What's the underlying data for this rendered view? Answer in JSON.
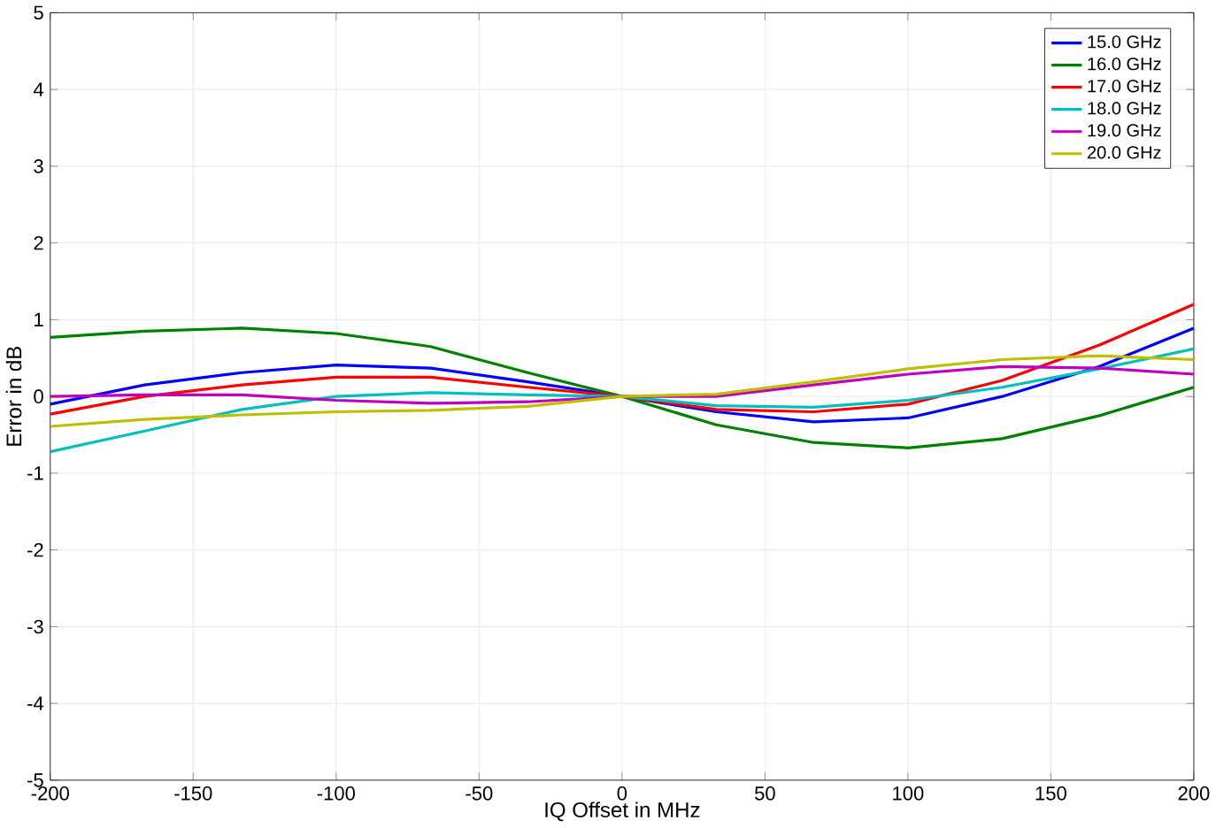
{
  "chart_data": {
    "type": "line",
    "xlabel": "IQ Offset in MHz",
    "ylabel": "Error in dB",
    "x": [
      -200,
      -167,
      -133,
      -100,
      -67,
      -33,
      0,
      33,
      67,
      100,
      133,
      167,
      200
    ],
    "xlim": [
      -200,
      200
    ],
    "xticks": [
      -200,
      -150,
      -100,
      -50,
      0,
      50,
      100,
      150,
      200
    ],
    "ylim": [
      -5,
      5
    ],
    "yticks": [
      -5,
      -4,
      -3,
      -2,
      -1,
      0,
      1,
      2,
      3,
      4,
      5
    ],
    "grid": true,
    "legend": "top right",
    "marker": "none",
    "line_style": "solid",
    "series": [
      {
        "name": "15.0 GHz",
        "color": "#0000ff",
        "values": [
          -0.1,
          0.15,
          0.31,
          0.41,
          0.37,
          0.19,
          0,
          -0.2,
          -0.33,
          -0.28,
          0.0,
          0.39,
          0.89
        ]
      },
      {
        "name": "16.0 GHz",
        "color": "#008000",
        "values": [
          0.77,
          0.85,
          0.89,
          0.82,
          0.65,
          0.31,
          0,
          -0.37,
          -0.6,
          -0.67,
          -0.55,
          -0.25,
          0.12
        ]
      },
      {
        "name": "17.0 GHz",
        "color": "#ff0000",
        "values": [
          -0.23,
          0.0,
          0.15,
          0.25,
          0.25,
          0.12,
          0,
          -0.17,
          -0.2,
          -0.1,
          0.21,
          0.67,
          1.2
        ]
      },
      {
        "name": "18.0 GHz",
        "color": "#00bfbf",
        "values": [
          -0.72,
          -0.45,
          -0.17,
          0.0,
          0.05,
          0.02,
          0,
          -0.12,
          -0.14,
          -0.05,
          0.12,
          0.36,
          0.62
        ]
      },
      {
        "name": "19.0 GHz",
        "color": "#bf00bf",
        "values": [
          0.0,
          0.02,
          0.02,
          -0.05,
          -0.09,
          -0.07,
          0,
          0.0,
          0.15,
          0.29,
          0.39,
          0.37,
          0.29
        ]
      },
      {
        "name": "20.0 GHz",
        "color": "#bfbf00",
        "values": [
          -0.39,
          -0.3,
          -0.24,
          -0.2,
          -0.18,
          -0.13,
          0,
          0.03,
          0.19,
          0.36,
          0.48,
          0.53,
          0.48
        ]
      }
    ]
  }
}
